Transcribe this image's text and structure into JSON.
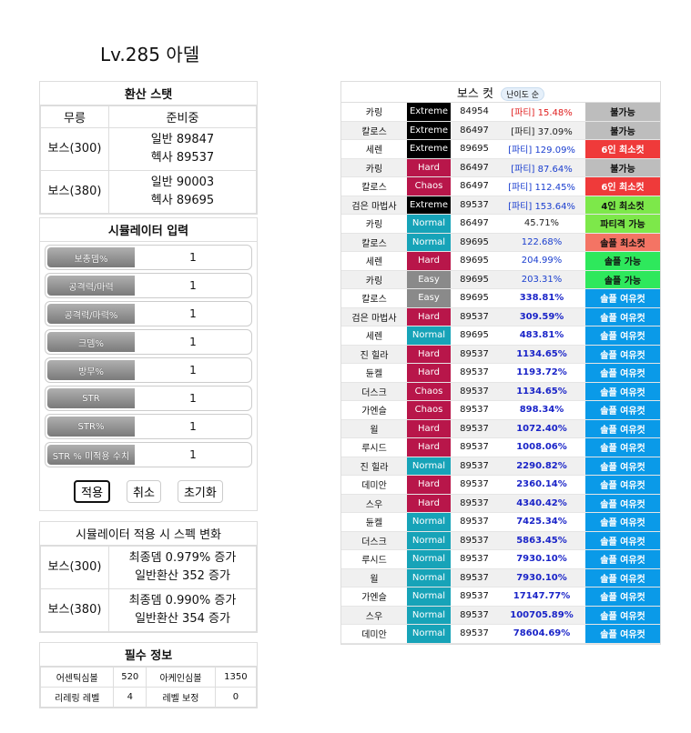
{
  "character": {
    "title": "Lv.285 아델"
  },
  "converted_stats": {
    "header": "환산 스탯",
    "weapon_label": "무릉",
    "weapon_value": "준비중",
    "rows": [
      {
        "label": "보스(300)",
        "line1": "일반 89847",
        "line2": "헥사 89537"
      },
      {
        "label": "보스(380)",
        "line1": "일반 90003",
        "line2": "헥사 89695"
      }
    ]
  },
  "simulator": {
    "header": "시뮬레이터 입력",
    "fields": [
      {
        "label": "보총뎀%",
        "value": "1"
      },
      {
        "label": "공격력/마력",
        "value": "1"
      },
      {
        "label": "공격력/마력%",
        "value": "1"
      },
      {
        "label": "크뎀%",
        "value": "1"
      },
      {
        "label": "방무%",
        "value": "1"
      },
      {
        "label": "STR",
        "value": "1"
      },
      {
        "label": "STR%",
        "value": "1"
      },
      {
        "label": "STR % 미적용 수치",
        "value": "1"
      }
    ],
    "buttons": {
      "apply": "적용",
      "cancel": "취소",
      "reset": "초기화"
    }
  },
  "spec_change": {
    "header": "시뮬레이터 적용 시 스펙 변화",
    "rows": [
      {
        "label": "보스(300)",
        "line1": "최종뎀 0.979% 증가",
        "line2": "일반환산 352 증가"
      },
      {
        "label": "보스(380)",
        "line1": "최종뎀 0.990% 증가",
        "line2": "일반환산 354 증가"
      }
    ]
  },
  "required_info": {
    "header": "필수 정보",
    "rows": [
      {
        "k1": "어센틱심볼",
        "v1": "520",
        "k2": "아케인심볼",
        "v2": "1350"
      },
      {
        "k1": "리레링 레벨",
        "v1": "4",
        "k2": "레벨 보정",
        "v2": "0"
      }
    ]
  },
  "boss_cut": {
    "header": "보스 컷",
    "badge": "난이도 순",
    "difficulty_colors": {
      "Extreme": "#000000",
      "Hard": "#b8164a",
      "Chaos": "#b8164a",
      "Normal": "#17a3b8",
      "Easy": "#8a8a8a"
    },
    "result_colors": {
      "gray": "#bdbdbd",
      "red": "#ef3a3a",
      "green": "#7de84a",
      "salmon": "#f47464",
      "bright": "#2ee85c",
      "blue": "#0a9ae8"
    },
    "rows": [
      {
        "boss": "카링",
        "difficulty": "Extreme",
        "stat": "84954",
        "pct": "[파티] 15.48%",
        "pct_style": "red",
        "result": "불가능",
        "result_color": "gray"
      },
      {
        "boss": "칼로스",
        "difficulty": "Extreme",
        "stat": "86497",
        "pct": "[파티] 37.09%",
        "pct_style": "dark",
        "result": "불가능",
        "result_color": "gray"
      },
      {
        "boss": "세렌",
        "difficulty": "Extreme",
        "stat": "89695",
        "pct": "[파티] 129.09%",
        "pct_style": "blue",
        "result": "6인 최소컷",
        "result_color": "red"
      },
      {
        "boss": "카링",
        "difficulty": "Hard",
        "stat": "86497",
        "pct": "[파티] 87.64%",
        "pct_style": "blue",
        "result": "불가능",
        "result_color": "gray"
      },
      {
        "boss": "칼로스",
        "difficulty": "Chaos",
        "stat": "86497",
        "pct": "[파티] 112.45%",
        "pct_style": "blue",
        "result": "6인 최소컷",
        "result_color": "red"
      },
      {
        "boss": "검은 마법사",
        "difficulty": "Extreme",
        "stat": "89537",
        "pct": "[파티] 153.64%",
        "pct_style": "blue",
        "result": "4인 최소컷",
        "result_color": "green"
      },
      {
        "boss": "카링",
        "difficulty": "Normal",
        "stat": "86497",
        "pct": "45.71%",
        "pct_style": "dark",
        "result": "파티격 가능",
        "result_color": "green"
      },
      {
        "boss": "칼로스",
        "difficulty": "Normal",
        "stat": "89695",
        "pct": "122.68%",
        "pct_style": "blue",
        "result": "솔플 최소컷",
        "result_color": "salmon"
      },
      {
        "boss": "세렌",
        "difficulty": "Hard",
        "stat": "89695",
        "pct": "204.99%",
        "pct_style": "blue",
        "result": "솔플 가능",
        "result_color": "bright"
      },
      {
        "boss": "카링",
        "difficulty": "Easy",
        "stat": "89695",
        "pct": "203.31%",
        "pct_style": "blue",
        "result": "솔플 가능",
        "result_color": "bright"
      },
      {
        "boss": "칼로스",
        "difficulty": "Easy",
        "stat": "89695",
        "pct": "338.81%",
        "pct_style": "bold",
        "result": "솔플 여유컷",
        "result_color": "blue"
      },
      {
        "boss": "검은 마법사",
        "difficulty": "Hard",
        "stat": "89537",
        "pct": "309.59%",
        "pct_style": "bold",
        "result": "솔플 여유컷",
        "result_color": "blue"
      },
      {
        "boss": "세렌",
        "difficulty": "Normal",
        "stat": "89695",
        "pct": "483.81%",
        "pct_style": "bold",
        "result": "솔플 여유컷",
        "result_color": "blue"
      },
      {
        "boss": "진 힐라",
        "difficulty": "Hard",
        "stat": "89537",
        "pct": "1134.65%",
        "pct_style": "bold",
        "result": "솔플 여유컷",
        "result_color": "blue"
      },
      {
        "boss": "듄켈",
        "difficulty": "Hard",
        "stat": "89537",
        "pct": "1193.72%",
        "pct_style": "bold",
        "result": "솔플 여유컷",
        "result_color": "blue"
      },
      {
        "boss": "더스크",
        "difficulty": "Chaos",
        "stat": "89537",
        "pct": "1134.65%",
        "pct_style": "bold",
        "result": "솔플 여유컷",
        "result_color": "blue"
      },
      {
        "boss": "가엔슬",
        "difficulty": "Chaos",
        "stat": "89537",
        "pct": "898.34%",
        "pct_style": "bold",
        "result": "솔플 여유컷",
        "result_color": "blue"
      },
      {
        "boss": "윌",
        "difficulty": "Hard",
        "stat": "89537",
        "pct": "1072.40%",
        "pct_style": "bold",
        "result": "솔플 여유컷",
        "result_color": "blue"
      },
      {
        "boss": "루시드",
        "difficulty": "Hard",
        "stat": "89537",
        "pct": "1008.06%",
        "pct_style": "bold",
        "result": "솔플 여유컷",
        "result_color": "blue"
      },
      {
        "boss": "진 힐라",
        "difficulty": "Normal",
        "stat": "89537",
        "pct": "2290.82%",
        "pct_style": "bold",
        "result": "솔플 여유컷",
        "result_color": "blue"
      },
      {
        "boss": "데미안",
        "difficulty": "Hard",
        "stat": "89537",
        "pct": "2360.14%",
        "pct_style": "bold",
        "result": "솔플 여유컷",
        "result_color": "blue"
      },
      {
        "boss": "스우",
        "difficulty": "Hard",
        "stat": "89537",
        "pct": "4340.42%",
        "pct_style": "bold",
        "result": "솔플 여유컷",
        "result_color": "blue"
      },
      {
        "boss": "듄켈",
        "difficulty": "Normal",
        "stat": "89537",
        "pct": "7425.34%",
        "pct_style": "bold",
        "result": "솔플 여유컷",
        "result_color": "blue"
      },
      {
        "boss": "더스크",
        "difficulty": "Normal",
        "stat": "89537",
        "pct": "5863.45%",
        "pct_style": "bold",
        "result": "솔플 여유컷",
        "result_color": "blue"
      },
      {
        "boss": "루시드",
        "difficulty": "Normal",
        "stat": "89537",
        "pct": "7930.10%",
        "pct_style": "bold",
        "result": "솔플 여유컷",
        "result_color": "blue"
      },
      {
        "boss": "윌",
        "difficulty": "Normal",
        "stat": "89537",
        "pct": "7930.10%",
        "pct_style": "bold",
        "result": "솔플 여유컷",
        "result_color": "blue"
      },
      {
        "boss": "가엔슬",
        "difficulty": "Normal",
        "stat": "89537",
        "pct": "17147.77%",
        "pct_style": "bold",
        "result": "솔플 여유컷",
        "result_color": "blue"
      },
      {
        "boss": "스우",
        "difficulty": "Normal",
        "stat": "89537",
        "pct": "100705.89%",
        "pct_style": "bold",
        "result": "솔플 여유컷",
        "result_color": "blue"
      },
      {
        "boss": "데미안",
        "difficulty": "Normal",
        "stat": "89537",
        "pct": "78604.69%",
        "pct_style": "bold",
        "result": "솔플 여유컷",
        "result_color": "blue"
      }
    ]
  }
}
